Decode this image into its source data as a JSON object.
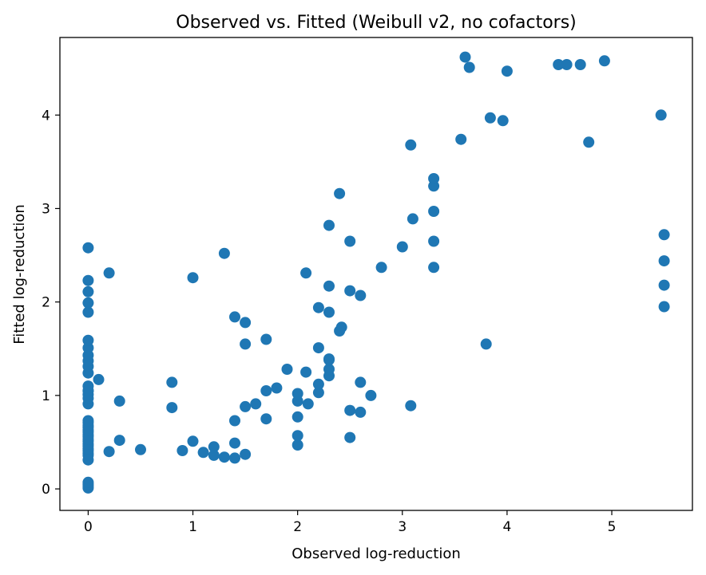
{
  "chart_data": {
    "type": "scatter",
    "title": "Observed vs. Fitted (Weibull v2, no cofactors)",
    "xlabel": "Observed log-reduction",
    "ylabel": "Fitted log-reduction",
    "xlim": [
      -0.27,
      5.77
    ],
    "ylim": [
      -0.23,
      4.83
    ],
    "xticks": [
      0,
      1,
      2,
      3,
      4,
      5
    ],
    "yticks": [
      0,
      1,
      2,
      3,
      4
    ],
    "grid": false,
    "legend": "none",
    "marker_color": "#1f77b4",
    "series": [
      {
        "x": [
          0,
          0,
          0,
          0,
          0,
          0,
          0,
          0,
          0,
          0,
          0,
          0,
          0,
          0,
          0,
          0,
          0,
          0,
          0,
          0,
          0,
          0,
          0,
          0,
          0,
          0,
          0,
          0,
          0,
          0,
          0,
          0,
          0,
          0,
          0,
          0,
          0,
          0,
          0.1,
          0.2,
          0.2,
          0.3,
          0.3,
          0.5,
          0.8,
          0.8,
          0.9,
          1.0,
          1.0,
          1.1,
          1.2,
          1.2,
          1.3,
          1.3,
          1.4,
          1.4,
          1.4,
          1.4,
          1.5,
          1.5,
          1.5,
          1.5,
          1.6,
          1.7,
          1.7,
          1.7,
          1.8,
          1.9,
          2.0,
          2.0,
          2.0,
          2.0,
          2.0,
          2.08,
          2.08,
          2.1,
          2.2,
          2.2,
          2.2,
          2.2,
          2.3,
          2.3,
          2.3,
          2.3,
          2.3,
          2.3,
          2.3,
          2.4,
          2.4,
          2.42,
          2.5,
          2.5,
          2.5,
          2.5,
          2.6,
          2.6,
          2.6,
          2.7,
          2.8,
          3.0,
          3.08,
          3.08,
          3.1,
          3.3,
          3.3,
          3.3,
          3.3,
          3.3,
          3.56,
          3.6,
          3.64,
          3.8,
          3.84,
          3.96,
          4.0,
          4.49,
          4.57,
          4.7,
          4.78,
          4.93,
          5.47,
          5.5,
          5.5,
          5.5,
          5.5
        ],
        "y": [
          0.01,
          0.03,
          0.05,
          0.07,
          0.31,
          0.36,
          0.41,
          0.46,
          0.51,
          0.56,
          0.61,
          0.66,
          0.71,
          0.91,
          1.01,
          1.05,
          1.1,
          1.24,
          1.31,
          1.37,
          1.43,
          1.51,
          1.59,
          1.89,
          1.99,
          2.11,
          2.23,
          2.58,
          0.38,
          0.43,
          0.48,
          0.53,
          0.58,
          0.63,
          0.68,
          0.73,
          0.97,
          1.05,
          1.17,
          0.4,
          2.31,
          0.52,
          0.94,
          0.42,
          0.87,
          1.14,
          0.41,
          0.51,
          2.26,
          0.39,
          0.36,
          0.45,
          0.34,
          2.52,
          0.33,
          0.49,
          0.73,
          1.84,
          0.37,
          0.88,
          1.55,
          1.78,
          0.91,
          0.75,
          1.05,
          1.6,
          1.08,
          1.28,
          0.47,
          0.57,
          0.77,
          0.94,
          1.02,
          1.25,
          2.31,
          0.91,
          1.03,
          1.12,
          1.51,
          1.94,
          1.21,
          1.28,
          1.39,
          1.89,
          2.17,
          2.82,
          1.38,
          1.69,
          3.16,
          1.73,
          0.55,
          0.84,
          2.12,
          2.65,
          0.82,
          1.14,
          2.07,
          1.0,
          2.37,
          2.59,
          0.89,
          3.68,
          2.89,
          2.37,
          2.65,
          2.97,
          3.24,
          3.32,
          3.74,
          4.62,
          4.51,
          1.55,
          3.97,
          3.94,
          4.47,
          4.54,
          4.54,
          4.54,
          3.71,
          4.58,
          4.0,
          1.95,
          2.18,
          2.44,
          2.72
        ]
      }
    ]
  }
}
